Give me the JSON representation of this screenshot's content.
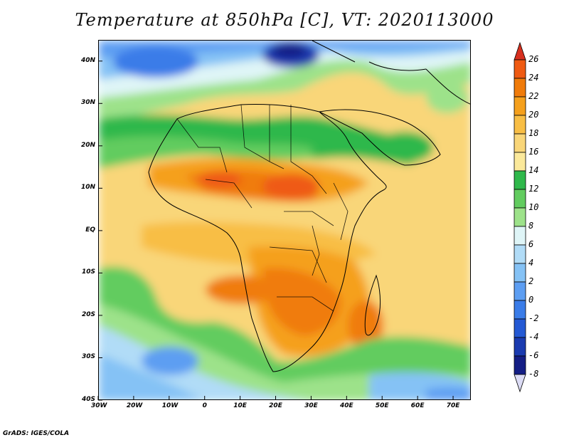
{
  "title": "Temperature at 850hPa [C], VT: 2020113000",
  "credit": "GrADS: IGES/COLA",
  "map": {
    "lon_range": [
      -30,
      75
    ],
    "lat_range": [
      -40,
      45
    ],
    "lat_labels": [
      {
        "text": "40N",
        "lat": 40
      },
      {
        "text": "30N",
        "lat": 30
      },
      {
        "text": "20N",
        "lat": 20
      },
      {
        "text": "10N",
        "lat": 10
      },
      {
        "text": "EQ",
        "lat": 0
      },
      {
        "text": "10S",
        "lat": -10
      },
      {
        "text": "20S",
        "lat": -20
      },
      {
        "text": "30S",
        "lat": -30
      },
      {
        "text": "40S",
        "lat": -40
      }
    ],
    "lon_labels": [
      {
        "text": "30W",
        "lon": -30
      },
      {
        "text": "20W",
        "lon": -20
      },
      {
        "text": "10W",
        "lon": -10
      },
      {
        "text": "0",
        "lon": 0
      },
      {
        "text": "10E",
        "lon": 10
      },
      {
        "text": "20E",
        "lon": 20
      },
      {
        "text": "30E",
        "lon": 30
      },
      {
        "text": "40E",
        "lon": 40
      },
      {
        "text": "50E",
        "lon": 50
      },
      {
        "text": "60E",
        "lon": 60
      },
      {
        "text": "70E",
        "lon": 70
      }
    ]
  },
  "colorbar": {
    "labels": [
      "26",
      "24",
      "22",
      "20",
      "18",
      "16",
      "14",
      "12",
      "10",
      "8",
      "6",
      "4",
      "2",
      "0",
      "-2",
      "-4",
      "-6",
      "-8"
    ],
    "colors_top_to_bottom": [
      "#d7301f",
      "#ef5a12",
      "#f07b0a",
      "#f5a01c",
      "#f8be45",
      "#f9d679",
      "#fbe99b",
      "#2fb84b",
      "#62cc5f",
      "#9de28a",
      "#dff5f7",
      "#b1dcf7",
      "#85c2f5",
      "#5d9ef2",
      "#3a7ce8",
      "#2459d4",
      "#1a3bb0",
      "#141e85",
      "#0c0c5c"
    ]
  }
}
